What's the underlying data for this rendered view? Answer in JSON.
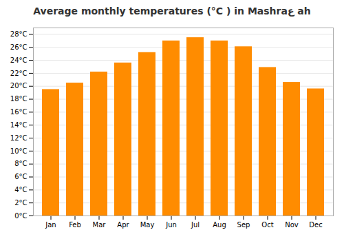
{
  "chart_data": {
    "type": "bar",
    "title": "Average monthly temperatures (°C ) in Mashraع ah",
    "categories": [
      "Jan",
      "Feb",
      "Mar",
      "Apr",
      "May",
      "Jun",
      "Jul",
      "Aug",
      "Sep",
      "Oct",
      "Nov",
      "Dec"
    ],
    "values": [
      19.5,
      20.5,
      22.2,
      23.6,
      25.2,
      27.0,
      27.5,
      27.0,
      26.1,
      22.9,
      20.6,
      19.6
    ],
    "color": "#FF8C00",
    "ylim": [
      0,
      29
    ],
    "yticks": [
      {
        "value": 0,
        "label": "0°C"
      },
      {
        "value": 2,
        "label": "2°C"
      },
      {
        "value": 4,
        "label": "4°C"
      },
      {
        "value": 6,
        "label": "6°C"
      },
      {
        "value": 8,
        "label": "8°C"
      },
      {
        "value": 10,
        "label": "10°C"
      },
      {
        "value": 12,
        "label": "12°C"
      },
      {
        "value": 14,
        "label": "14°C"
      },
      {
        "value": 16,
        "label": "16°C"
      },
      {
        "value": 18,
        "label": "18°C"
      },
      {
        "value": 20,
        "label": "20°C"
      },
      {
        "value": 22,
        "label": "22°C"
      },
      {
        "value": 24,
        "label": "24°C"
      },
      {
        "value": 26,
        "label": "26°C"
      },
      {
        "value": 28,
        "label": "28°C"
      }
    ],
    "grid": true
  }
}
